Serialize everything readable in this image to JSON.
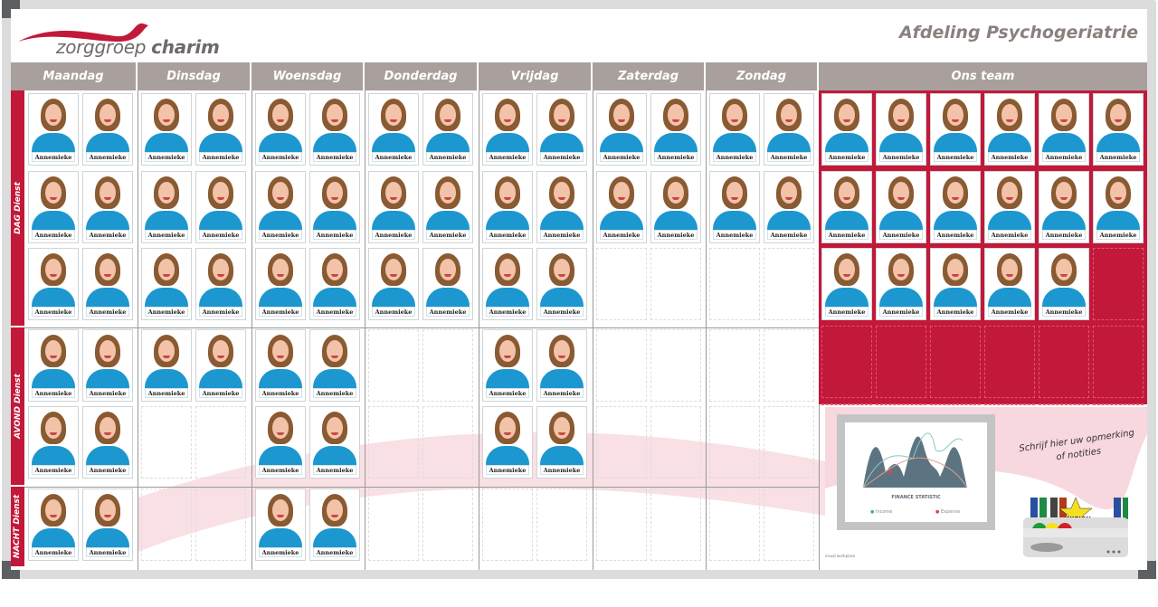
{
  "brand": {
    "name_light": "zorggroep",
    "name_bold": "charim",
    "logo_color": "#c2183a"
  },
  "department": "Afdeling Psychogeriatrie",
  "days": [
    "Maandag",
    "Dinsdag",
    "Woensdag",
    "Donderdag",
    "Vrijdag",
    "Zaterdag",
    "Zondag"
  ],
  "team_header": "Ons team",
  "shifts": [
    {
      "label": "DAG Dienst",
      "rows": [
        [
          2,
          2,
          2,
          2,
          2,
          2,
          2
        ],
        [
          2,
          2,
          2,
          2,
          2,
          2,
          2
        ],
        [
          2,
          2,
          2,
          2,
          2,
          0,
          0
        ]
      ]
    },
    {
      "label": "AVOND Dienst",
      "rows": [
        [
          2,
          2,
          2,
          0,
          2,
          0,
          0
        ],
        [
          2,
          0,
          2,
          0,
          2,
          0,
          0
        ]
      ]
    },
    {
      "label": "NACHT Dienst",
      "rows": [
        [
          2,
          0,
          2,
          0,
          0,
          0,
          0
        ]
      ]
    }
  ],
  "card_name": "Annemieke",
  "team": {
    "columns": 6,
    "rows": 5,
    "filled": [
      6,
      6,
      5,
      0,
      0
    ]
  },
  "finance": {
    "title": "FINANCE STATISTIC",
    "legend_income": "Income",
    "legend_expense": "Expense",
    "income_color": "#4caf8a",
    "expense_color": "#e0444a"
  },
  "note": {
    "line1": "Schrijf hier uw opmerking",
    "line2": "of notities"
  },
  "marker_tray": {
    "badge": "NIEUW"
  },
  "footer_logo": "visual workplace",
  "colors": {
    "accent": "#c2183a",
    "header": "#a9a09d",
    "shirt": "#1d97cf"
  }
}
